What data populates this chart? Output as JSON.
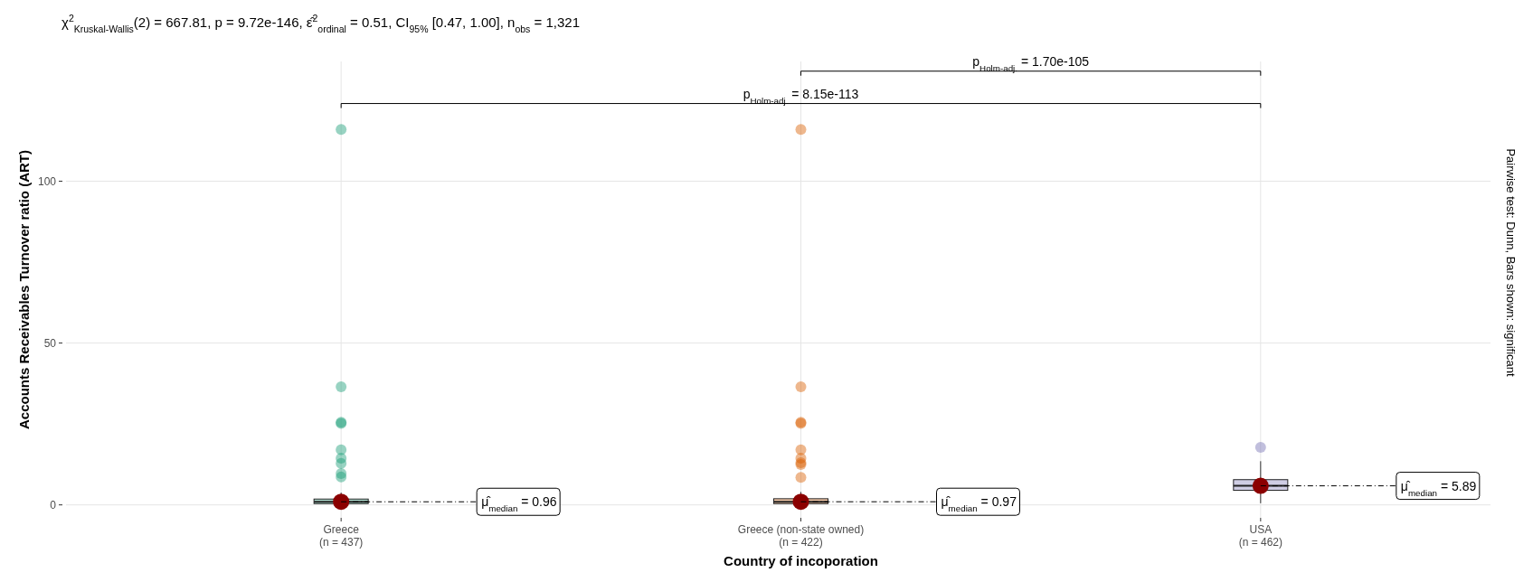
{
  "chart_data": {
    "type": "box",
    "subtitle": "χ$^{2}$$_{Kruskal-Wallis}$(2) = 667.81, p = 9.72e-146, ε̂$^{2}$$_{ordinal}$ = 0.51, CI$_{95%}$ [0.47, 1.00], n$_{obs}$ = 1,321",
    "xlabel": "Country of incoporation",
    "ylabel": "Accounts Receivables Turnover ratio (ART)",
    "categories": [
      "Greece\n(n = 437)",
      "Greece (non-state owned)\n(n = 422)",
      "USA\n(n = 462)"
    ],
    "colors": [
      "#1b9e77",
      "#d95f02",
      "#7570b3"
    ],
    "boxes": [
      {
        "low": 0,
        "q1": 0.4,
        "median": 0.96,
        "q3": 1.8,
        "high": 3.8,
        "outliers": [
          116,
          36.5,
          25.5,
          25.2,
          17,
          14.4,
          12.8,
          9.7,
          8.6
        ]
      },
      {
        "low": 0,
        "q1": 0.4,
        "median": 0.97,
        "q3": 1.9,
        "high": 4,
        "outliers": [
          116,
          36.5,
          25.5,
          25.2,
          17,
          14.4,
          13,
          12.5,
          8.5
        ]
      },
      {
        "low": 0.5,
        "q1": 4.5,
        "median": 5.89,
        "q3": 7.8,
        "high": 13.5,
        "outliers": [
          17.8
        ]
      }
    ],
    "series": [
      {
        "type": "scatter",
        "x": [
          "Greece\n(n = 437)",
          "Greece (non-state owned)\n(n = 422)",
          "USA\n(n = 462)"
        ],
        "values": [
          0.96,
          0.97,
          5.89
        ],
        "color": "#8b0000"
      }
    ],
    "marker": "circle",
    "ylim": [
      -4,
      137
    ],
    "yticks": [
      0,
      50,
      100
    ],
    "grid": true,
    "annotations": [
      "p$_{Holm-adj.}$ = 8.15e-113",
      "p$_{Holm-adj.}$ = 1.70e-105",
      "Pairwise test: Dunn, Bars shown: significant",
      {
        "text": "μ̂$_{median}$ = 0.96",
        "x": "Greece\n(n = 437)",
        "y": 0.96
      },
      {
        "text": "μ̂$_{median}$ = 0.97",
        "x": "Greece (non-state owned)\n(n = 422)",
        "y": 0.97
      },
      {
        "text": "μ̂$_{median}$ = 5.89",
        "x": "USA\n(n = 462)",
        "y": 5.89
      }
    ]
  }
}
